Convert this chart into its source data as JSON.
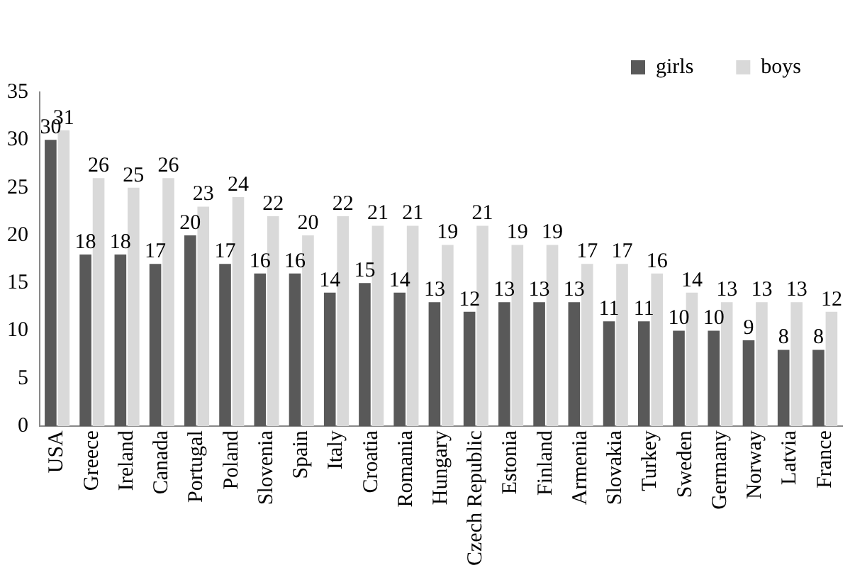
{
  "chart_data": {
    "type": "bar",
    "categories": [
      "USA",
      "Greece",
      "Ireland",
      "Canada",
      "Portugal",
      "Poland",
      "Slovenia",
      "Spain",
      "Italy",
      "Croatia",
      "Romania",
      "Hungary",
      "Czech Republic",
      "Estonia",
      "Finland",
      "Armenia",
      "Slovakia",
      "Turkey",
      "Sweden",
      "Germany",
      "Norway",
      "Latvia",
      "France"
    ],
    "series": [
      {
        "name": "girls",
        "color": "#595959",
        "values": [
          30,
          18,
          18,
          17,
          20,
          17,
          16,
          16,
          14,
          15,
          14,
          13,
          12,
          13,
          13,
          13,
          11,
          11,
          10,
          10,
          9,
          8,
          8
        ]
      },
      {
        "name": "boys",
        "color": "#d9d9d9",
        "values": [
          31,
          26,
          25,
          26,
          23,
          24,
          22,
          20,
          22,
          21,
          21,
          19,
          21,
          19,
          19,
          17,
          17,
          16,
          14,
          13,
          13,
          13,
          12
        ]
      }
    ],
    "ylim": [
      0,
      35
    ],
    "yticks": [
      0,
      5,
      10,
      15,
      20,
      25,
      30,
      35
    ],
    "grid": false,
    "legend": "top right",
    "data_labels": true
  }
}
